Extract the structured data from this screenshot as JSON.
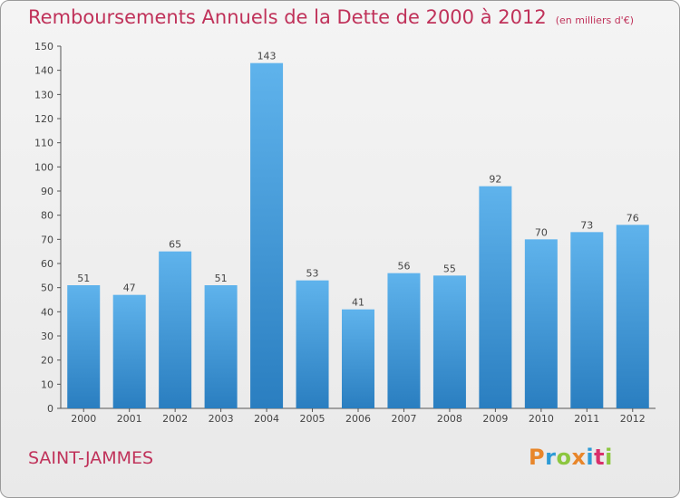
{
  "title": "Remboursements Annuels de la Dette de 2000 à 2012",
  "unit_note": "(en milliers d'€)",
  "place": "SAINT-JAMMES",
  "logo": {
    "letters": [
      "P",
      "r",
      "o",
      "x",
      "i",
      "t",
      "i"
    ]
  },
  "colors": {
    "bar_light": "#5fb3ec",
    "bar_dark": "#2a7ec0",
    "title": "#c0325a"
  },
  "chart_data": {
    "type": "bar",
    "categories": [
      "2000",
      "2001",
      "2002",
      "2003",
      "2004",
      "2005",
      "2006",
      "2007",
      "2008",
      "2009",
      "2010",
      "2011",
      "2012"
    ],
    "values": [
      51,
      47,
      65,
      51,
      143,
      53,
      41,
      56,
      55,
      92,
      70,
      73,
      76
    ],
    "ylim": [
      0,
      150
    ],
    "yticks": [
      0,
      10,
      20,
      30,
      40,
      50,
      60,
      70,
      80,
      90,
      100,
      110,
      120,
      130,
      140,
      150
    ],
    "grid": false,
    "data_labels": true
  }
}
